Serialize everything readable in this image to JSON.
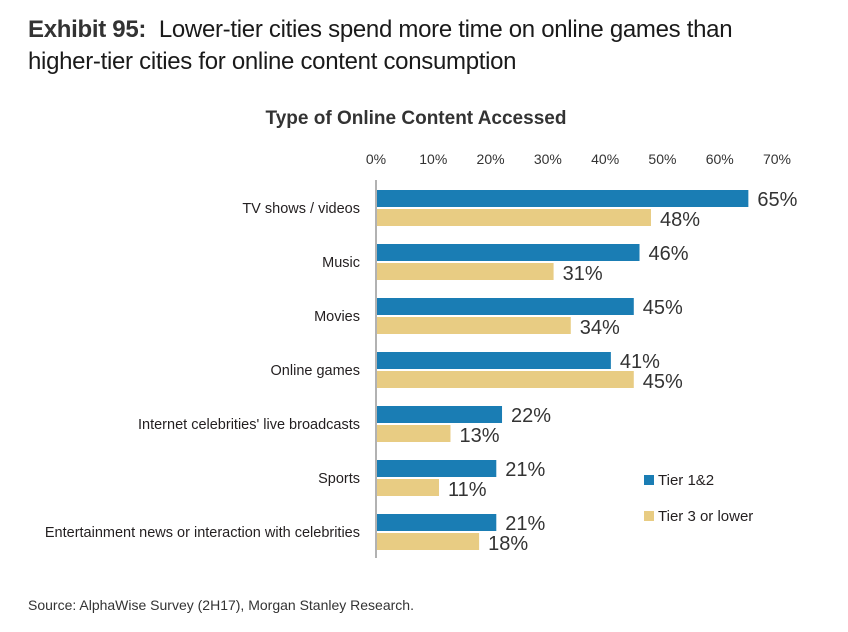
{
  "header": {
    "exhibit_label": "Exhibit 95:",
    "title_line1": "Lower-tier cities spend more time on online games than",
    "title_line2": "higher-tier cities for online content consumption"
  },
  "footer": {
    "source": "Source: AlphaWise Survey (2H17), Morgan Stanley Research."
  },
  "colors": {
    "tier12": "#1a7db4",
    "tier3": "#e8cc83",
    "axis": "#999999",
    "text": "#231f20"
  },
  "chart_data": {
    "type": "bar",
    "orientation": "horizontal",
    "title": "Type of Online Content Accessed",
    "xlabel": "",
    "ylabel": "",
    "xlim": [
      0,
      70
    ],
    "x_ticks": [
      "0%",
      "10%",
      "20%",
      "30%",
      "40%",
      "50%",
      "60%",
      "70%"
    ],
    "x_tick_values": [
      0,
      10,
      20,
      30,
      40,
      50,
      60,
      70
    ],
    "x_axis_position": "top",
    "grid": false,
    "legend_position": "bottom-right",
    "categories": [
      "TV shows / videos",
      "Music",
      "Movies",
      "Online games",
      "Internet celebrities' live broadcasts",
      "Sports",
      "Entertainment news or interaction with celebrities"
    ],
    "series": [
      {
        "name": "Tier 1&2",
        "values": [
          65,
          46,
          45,
          41,
          22,
          21,
          21
        ],
        "labels": [
          "65%",
          "46%",
          "45%",
          "41%",
          "22%",
          "21%",
          "21%"
        ]
      },
      {
        "name": "Tier 3 or lower",
        "values": [
          48,
          31,
          34,
          45,
          13,
          11,
          18
        ],
        "labels": [
          "48%",
          "31%",
          "34%",
          "45%",
          "13%",
          "11%",
          "18%"
        ]
      }
    ]
  }
}
